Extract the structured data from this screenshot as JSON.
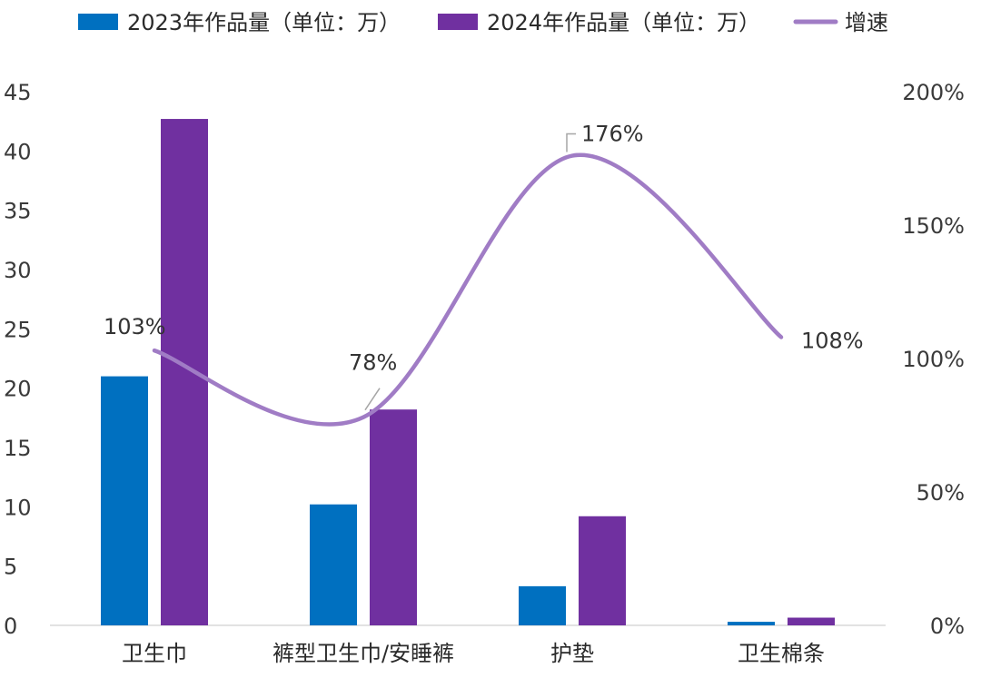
{
  "chart_data": {
    "type": "bar",
    "categories": [
      "卫生巾",
      "裤型卫生巾/安睡裤",
      "护垫",
      "卫生棉条"
    ],
    "series": [
      {
        "name": "2023年作品量（单位：万）",
        "type": "bar",
        "axis": "left",
        "color": "#0070c0",
        "values": [
          21,
          10.2,
          3.3,
          0.3
        ]
      },
      {
        "name": "2024年作品量（单位：万）",
        "type": "bar",
        "axis": "left",
        "color": "#7030a0",
        "values": [
          42.7,
          18.2,
          9.2,
          0.65
        ]
      },
      {
        "name": "增速",
        "type": "line",
        "axis": "right",
        "color": "#a07cc5",
        "values": [
          103,
          78,
          176,
          108
        ],
        "labels": [
          "103%",
          "78%",
          "176%",
          "108%"
        ]
      }
    ],
    "y_left": {
      "ylim": [
        0,
        45
      ],
      "ticks": [
        "0",
        "5",
        "10",
        "15",
        "20",
        "25",
        "30",
        "35",
        "40",
        "45"
      ]
    },
    "y_right": {
      "ylim": [
        0,
        200
      ],
      "ticks": [
        "0%",
        "50%",
        "100%",
        "150%",
        "200%"
      ]
    },
    "legend_position": "top",
    "grid": false
  }
}
